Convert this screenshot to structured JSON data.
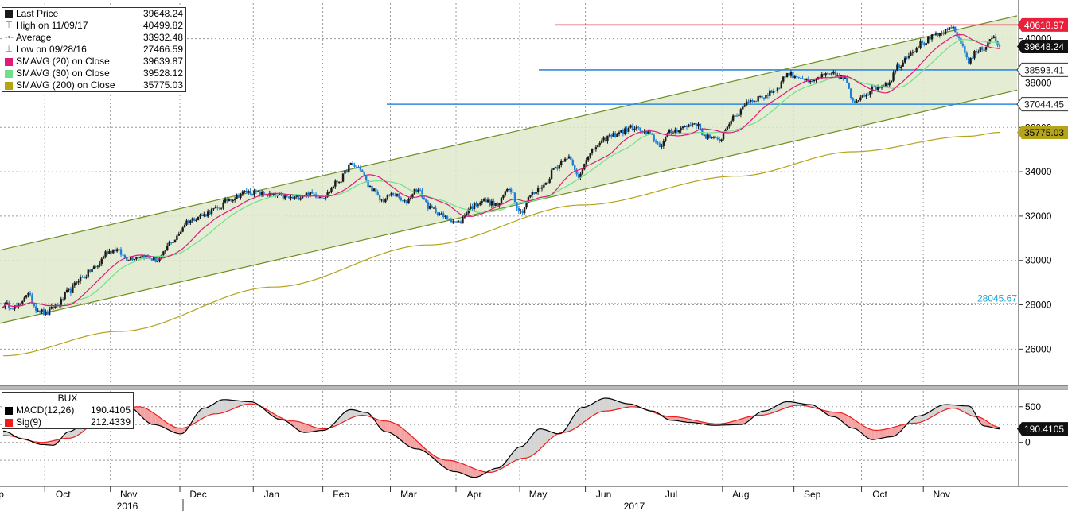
{
  "colors": {
    "candle_up": "#1a1a1a",
    "candle_down": "#1f7fd6",
    "sma20": "#e0197a",
    "sma30": "#6fe08a",
    "sma200": "#b5a31a",
    "channel_line": "#6d8e22",
    "channel_fill": "#dfeacb",
    "resistance": "#e8203c",
    "support": "#2f8ae0",
    "low_line": "#1fa3d8",
    "macd": "#000000",
    "signal": "#ee1c1c"
  },
  "legend": {
    "main": [
      {
        "icon": "black-square",
        "label": "Last Price",
        "value": "39648.24"
      },
      {
        "icon": "high-marker",
        "label": "High on 11/09/17",
        "value": "40499.82"
      },
      {
        "icon": "average-marker",
        "label": "Average",
        "value": "33932.48"
      },
      {
        "icon": "low-marker",
        "label": "Low on 09/28/16",
        "value": "27466.59"
      },
      {
        "icon": "magenta-square",
        "label": "SMAVG (20)  on Close",
        "value": "39639.87"
      },
      {
        "icon": "green-square",
        "label": "SMAVG (30)  on Close",
        "value": "39528.12"
      },
      {
        "icon": "olive-square",
        "label": "SMAVG (200)  on Close",
        "value": "35775.03"
      }
    ],
    "macd_title": "BUX",
    "macd": [
      {
        "icon": "black-square",
        "label": "MACD(12,26)",
        "value": "190.4105"
      },
      {
        "icon": "red-square",
        "label": "Sig(9)",
        "value": "212.4339"
      }
    ]
  },
  "chart_data": [
    {
      "type": "candlestick",
      "panel": "price",
      "title": "",
      "ylim": [
        24400,
        41600
      ],
      "y_ticks": [
        "26000",
        "28000",
        "30000",
        "32000",
        "34000",
        "36000",
        "38000",
        "40000"
      ],
      "x_months": [
        "Sep",
        "Oct",
        "Nov",
        "Dec",
        "Jan",
        "Feb",
        "Mar",
        "Apr",
        "May",
        "Jun",
        "Jul",
        "Aug",
        "Sep",
        "Oct",
        "Nov"
      ],
      "x_years": [
        "2016",
        "2017"
      ],
      "grid": true,
      "close_anchors": [
        [
          0,
          28000
        ],
        [
          8,
          27900
        ],
        [
          12,
          28500
        ],
        [
          18,
          27800
        ],
        [
          22,
          27600
        ],
        [
          28,
          28000
        ],
        [
          34,
          28600
        ],
        [
          40,
          29200
        ],
        [
          48,
          29700
        ],
        [
          54,
          30400
        ],
        [
          58,
          30500
        ],
        [
          64,
          30100
        ],
        [
          72,
          30200
        ],
        [
          80,
          30000
        ],
        [
          88,
          30900
        ],
        [
          96,
          31800
        ],
        [
          102,
          32000
        ],
        [
          110,
          32300
        ],
        [
          118,
          32800
        ],
        [
          126,
          33100
        ],
        [
          134,
          33000
        ],
        [
          142,
          32900
        ],
        [
          150,
          32800
        ],
        [
          158,
          33000
        ],
        [
          166,
          32900
        ],
        [
          174,
          33600
        ],
        [
          180,
          34300
        ],
        [
          184,
          34200
        ],
        [
          190,
          33300
        ],
        [
          196,
          32700
        ],
        [
          202,
          33000
        ],
        [
          208,
          32600
        ],
        [
          214,
          33200
        ],
        [
          222,
          32300
        ],
        [
          230,
          31900
        ],
        [
          236,
          31700
        ],
        [
          242,
          32400
        ],
        [
          248,
          32700
        ],
        [
          256,
          32500
        ],
        [
          262,
          33300
        ],
        [
          268,
          32200
        ],
        [
          274,
          33000
        ],
        [
          280,
          33400
        ],
        [
          286,
          34200
        ],
        [
          292,
          34700
        ],
        [
          298,
          33800
        ],
        [
          302,
          34600
        ],
        [
          308,
          35200
        ],
        [
          314,
          35600
        ],
        [
          320,
          35800
        ],
        [
          326,
          36000
        ],
        [
          334,
          35700
        ],
        [
          340,
          35200
        ],
        [
          346,
          35800
        ],
        [
          352,
          36000
        ],
        [
          358,
          36200
        ],
        [
          364,
          35600
        ],
        [
          370,
          35400
        ],
        [
          378,
          36400
        ],
        [
          386,
          37200
        ],
        [
          394,
          37400
        ],
        [
          400,
          37700
        ],
        [
          406,
          38400
        ],
        [
          412,
          38300
        ],
        [
          418,
          38000
        ],
        [
          424,
          38300
        ],
        [
          430,
          38400
        ],
        [
          436,
          38200
        ],
        [
          440,
          37100
        ],
        [
          446,
          37500
        ],
        [
          452,
          37800
        ],
        [
          458,
          38000
        ],
        [
          464,
          38800
        ],
        [
          470,
          39400
        ],
        [
          476,
          39800
        ],
        [
          482,
          40100
        ],
        [
          488,
          40300
        ],
        [
          492,
          40500
        ],
        [
          496,
          39800
        ],
        [
          500,
          39000
        ],
        [
          504,
          39400
        ],
        [
          508,
          39600
        ],
        [
          512,
          40100
        ],
        [
          516,
          39648
        ]
      ],
      "sma20_last": 39639.87,
      "sma30_last": 39528.12,
      "sma200_anchors": [
        [
          0,
          25700
        ],
        [
          60,
          26800
        ],
        [
          140,
          28800
        ],
        [
          220,
          30700
        ],
        [
          300,
          32500
        ],
        [
          380,
          33800
        ],
        [
          440,
          34900
        ],
        [
          500,
          35600
        ],
        [
          516,
          35775
        ]
      ],
      "channel": {
        "upper": [
          [
            0,
            30500
          ],
          [
            516,
            40850
          ]
        ],
        "lower": [
          [
            0,
            27200
          ],
          [
            516,
            37500
          ]
        ]
      },
      "horizontal_levels": [
        {
          "label": "40618.97",
          "value": 40618.97,
          "kind": "resistance"
        },
        {
          "label": "38593.41",
          "value": 38593.41,
          "kind": "support"
        },
        {
          "label": "37044.45",
          "value": 37044.45,
          "kind": "support"
        },
        {
          "label": "28045.67",
          "value": 28045.67,
          "kind": "low"
        }
      ],
      "last_value_tags": [
        {
          "label": "39648.24",
          "value": 39648.24,
          "kind": "last"
        },
        {
          "label": "35775.03",
          "value": 35775.03,
          "kind": "sma200"
        }
      ]
    },
    {
      "type": "line",
      "panel": "macd",
      "title": "BUX",
      "ylim": [
        -560,
        720
      ],
      "y_ticks": [
        "500",
        "0"
      ],
      "series": [
        {
          "name": "MACD(12,26)",
          "anchors": [
            [
              0,
              160
            ],
            [
              10,
              50
            ],
            [
              20,
              -30
            ],
            [
              26,
              -40
            ],
            [
              34,
              150
            ],
            [
              46,
              370
            ],
            [
              56,
              520
            ],
            [
              64,
              510
            ],
            [
              78,
              250
            ],
            [
              92,
              120
            ],
            [
              104,
              480
            ],
            [
              114,
              600
            ],
            [
              128,
              570
            ],
            [
              144,
              320
            ],
            [
              156,
              140
            ],
            [
              166,
              170
            ],
            [
              180,
              460
            ],
            [
              188,
              420
            ],
            [
              198,
              150
            ],
            [
              214,
              -90
            ],
            [
              234,
              -410
            ],
            [
              244,
              -490
            ],
            [
              256,
              -360
            ],
            [
              268,
              -60
            ],
            [
              278,
              190
            ],
            [
              288,
              120
            ],
            [
              300,
              490
            ],
            [
              312,
              620
            ],
            [
              324,
              540
            ],
            [
              336,
              440
            ],
            [
              346,
              310
            ],
            [
              356,
              280
            ],
            [
              368,
              240
            ],
            [
              382,
              250
            ],
            [
              394,
              440
            ],
            [
              406,
              570
            ],
            [
              418,
              530
            ],
            [
              430,
              360
            ],
            [
              440,
              200
            ],
            [
              450,
              40
            ],
            [
              460,
              80
            ],
            [
              474,
              370
            ],
            [
              488,
              530
            ],
            [
              500,
              510
            ],
            [
              508,
              230
            ],
            [
              516,
              190.41
            ]
          ],
          "last": 190.41,
          "last_label": "190.4105"
        },
        {
          "name": "Sig(9)",
          "anchors": [
            [
              0,
              100
            ],
            [
              20,
              0
            ],
            [
              34,
              60
            ],
            [
              56,
              420
            ],
            [
              70,
              500
            ],
            [
              92,
              200
            ],
            [
              110,
              400
            ],
            [
              128,
              540
            ],
            [
              150,
              300
            ],
            [
              166,
              190
            ],
            [
              186,
              380
            ],
            [
              198,
              300
            ],
            [
              230,
              -250
            ],
            [
              252,
              -420
            ],
            [
              270,
              -220
            ],
            [
              290,
              140
            ],
            [
              312,
              440
            ],
            [
              326,
              500
            ],
            [
              346,
              360
            ],
            [
              370,
              260
            ],
            [
              392,
              380
            ],
            [
              412,
              520
            ],
            [
              432,
              420
            ],
            [
              452,
              170
            ],
            [
              472,
              270
            ],
            [
              492,
              480
            ],
            [
              504,
              360
            ],
            [
              516,
              212.43
            ]
          ],
          "last": 212.43
        }
      ]
    }
  ]
}
